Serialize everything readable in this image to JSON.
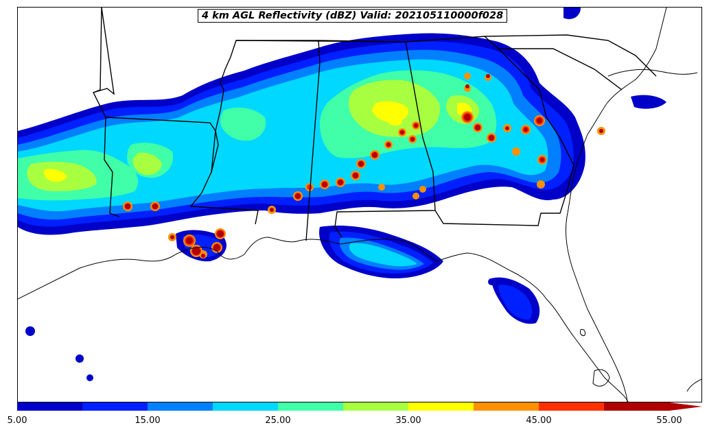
{
  "title": "4 km AGL Reflectivity (dBZ) Valid: 202105110000f028",
  "colorbar": {
    "levels": [
      5,
      10,
      15,
      20,
      25,
      30,
      35,
      40,
      45,
      50,
      55
    ],
    "colors": [
      "#0000c8",
      "#0020ff",
      "#0080ff",
      "#00d8ff",
      "#40ffa8",
      "#a8ff40",
      "#ffff00",
      "#ff9000",
      "#ff3000",
      "#b00000"
    ],
    "extend_color": "#b00000",
    "tick_labels": [
      "5.00",
      "15.00",
      "25.00",
      "35.00",
      "45.00",
      "55.00"
    ],
    "tick_values": [
      5,
      15,
      25,
      35,
      45,
      55
    ]
  },
  "legend": {
    "units": "dBZ",
    "extend": "max"
  }
}
